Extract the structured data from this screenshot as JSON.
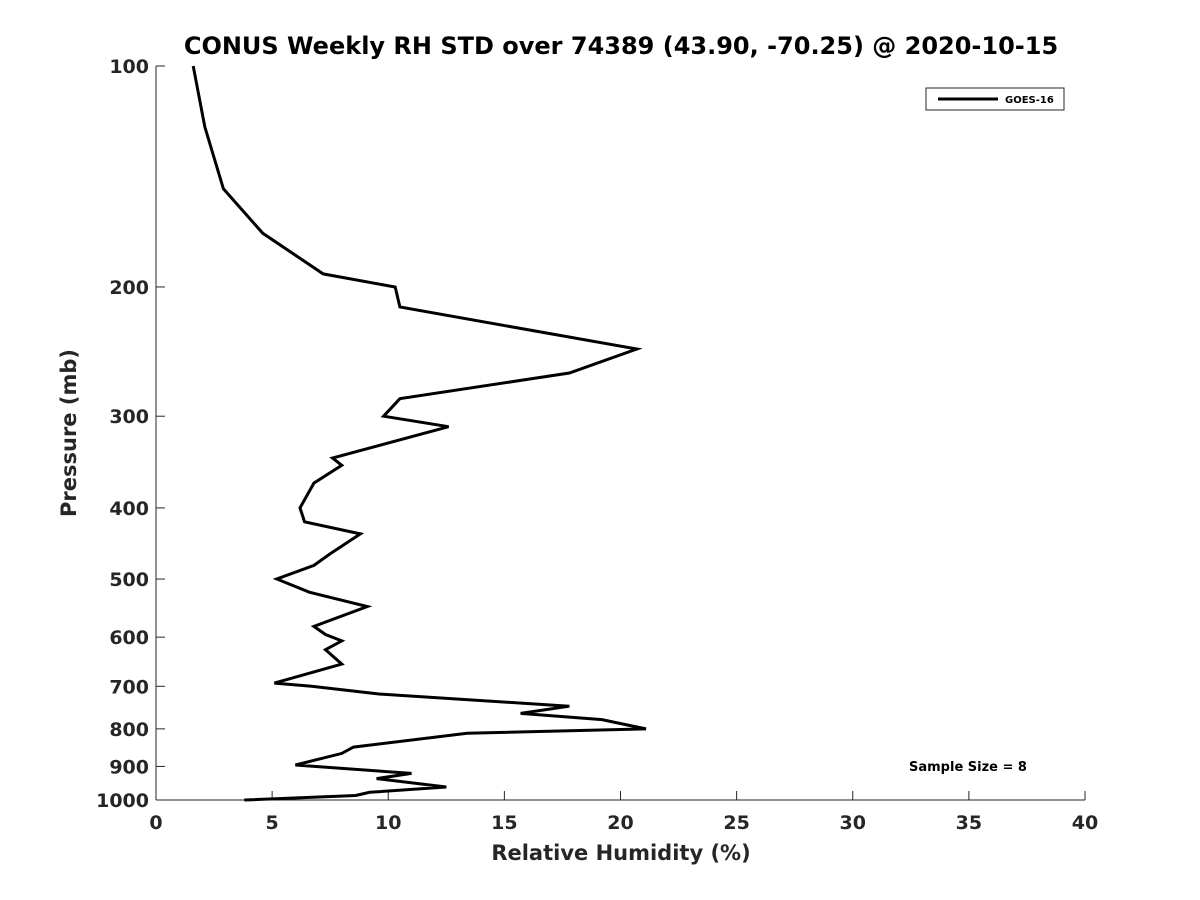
{
  "chart_data": {
    "type": "line",
    "title": "CONUS Weekly RH STD over 74389 (43.90, -70.25) @ 2020-10-15",
    "xlabel": "Relative Humidity (%)",
    "ylabel": "Pressure (mb)",
    "xlim": [
      0,
      40
    ],
    "ylim": [
      100,
      1000
    ],
    "y_scale": "log",
    "y_reversed": true,
    "grid": false,
    "legend_position": "top-right",
    "x_ticks": [
      "0",
      "5",
      "10",
      "15",
      "20",
      "25",
      "30",
      "35",
      "40"
    ],
    "y_ticks": [
      "100",
      "200",
      "300",
      "400",
      "500",
      "600",
      "700",
      "800",
      "900",
      "1000"
    ],
    "annotation": "Sample Size = 8",
    "series": [
      {
        "name": "GOES-16",
        "color": "#000000",
        "points": [
          [
            1.6,
            100
          ],
          [
            2.1,
            121
          ],
          [
            2.9,
            147
          ],
          [
            4.6,
            169
          ],
          [
            7.2,
            192
          ],
          [
            10.3,
            200
          ],
          [
            10.5,
            213
          ],
          [
            20.7,
            243
          ],
          [
            17.8,
            262
          ],
          [
            10.5,
            284
          ],
          [
            9.8,
            300
          ],
          [
            12.6,
            310
          ],
          [
            7.6,
            342
          ],
          [
            8.0,
            350
          ],
          [
            6.8,
            370
          ],
          [
            6.2,
            400
          ],
          [
            6.4,
            418
          ],
          [
            8.8,
            434
          ],
          [
            7.5,
            462
          ],
          [
            6.8,
            479
          ],
          [
            5.2,
            500
          ],
          [
            6.6,
            521
          ],
          [
            9.1,
            545
          ],
          [
            6.8,
            580
          ],
          [
            7.3,
            595
          ],
          [
            8.0,
            607
          ],
          [
            7.3,
            624
          ],
          [
            8.0,
            653
          ],
          [
            5.1,
            693
          ],
          [
            6.7,
            700
          ],
          [
            9.6,
            717
          ],
          [
            17.8,
            745
          ],
          [
            15.7,
            762
          ],
          [
            19.2,
            777
          ],
          [
            21.1,
            800
          ],
          [
            13.4,
            811
          ],
          [
            8.5,
            847
          ],
          [
            8.0,
            864
          ],
          [
            6.0,
            896
          ],
          [
            11.0,
            920
          ],
          [
            9.5,
            935
          ],
          [
            12.5,
            960
          ],
          [
            9.2,
            976
          ],
          [
            8.6,
            986
          ],
          [
            3.8,
            1000
          ]
        ]
      }
    ]
  }
}
